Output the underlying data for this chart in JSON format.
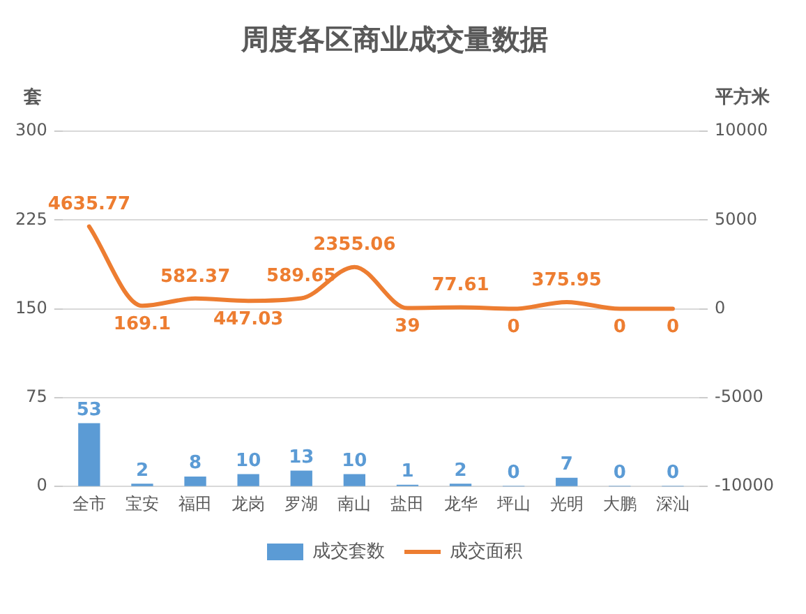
{
  "chart_data": {
    "type": "bar",
    "title": "周度各区商业成交量数据",
    "ylabel": "套",
    "y2label": "平方米",
    "categories": [
      "全市",
      "宝安",
      "福田",
      "龙岗",
      "罗湖",
      "南山",
      "盐田",
      "龙华",
      "坪山",
      "光明",
      "大鹏",
      "深汕"
    ],
    "series": [
      {
        "name": "成交套数",
        "color": "#5b9bd5",
        "values": [
          53,
          2,
          8,
          10,
          13,
          10,
          1,
          2,
          0,
          7,
          0,
          0
        ]
      },
      {
        "name": "成交面积",
        "type": "line",
        "axis": "y2",
        "color": "#ed7d31",
        "values": [
          4635.77,
          169.1,
          582.37,
          447.03,
          589.65,
          2355.06,
          39,
          77.61,
          0,
          375.95,
          0,
          0
        ]
      }
    ],
    "ylim": [
      0,
      300
    ],
    "yticks": [
      0,
      75,
      150,
      225,
      300
    ],
    "y2lim": [
      -10000,
      10000
    ],
    "y2ticks": [
      -10000,
      -5000,
      0,
      5000,
      10000
    ],
    "grid": "y",
    "legend": "bottom",
    "data_labels": true,
    "marker": "none"
  }
}
